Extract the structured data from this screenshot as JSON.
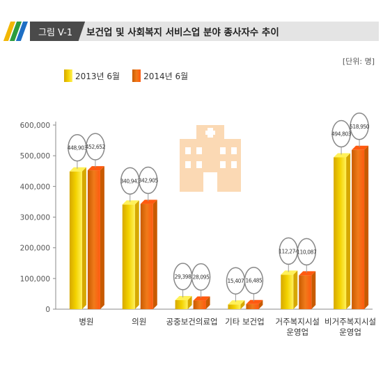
{
  "header": {
    "figure_label": "그림 V-1",
    "title": "보건업 및 사회복지 서비스업 분야 종사자수 추이",
    "stripe_colors": [
      "#f2b705",
      "#2d9c3c",
      "#1e6fc4"
    ]
  },
  "unit_label": "[단위: 명]",
  "colors": {
    "series_2013": "#f3d200",
    "series_2013_top": "#fff15a",
    "series_2013_dark": "#d6a800",
    "series_2014": "#f07b1a",
    "series_2014_top": "#ff5a10",
    "series_2014_dark": "#c85a00",
    "background_icon": "#fbd9b4",
    "axis_text": "#555555"
  },
  "chart_data": {
    "type": "bar",
    "categories": [
      "병원",
      "의원",
      "공중보건의료업",
      "기타 보건업",
      "거주복지시설\n운영업",
      "비거주복지시설\n운영업"
    ],
    "series": [
      {
        "name": "2013년 6월",
        "values": [
          448903,
          340943,
          29398,
          15407,
          112274,
          494803
        ]
      },
      {
        "name": "2014년 6월",
        "values": [
          452652,
          342905,
          28095,
          16485,
          110087,
          518950
        ]
      }
    ],
    "value_labels": [
      [
        "448,903",
        "340,943",
        "29,398",
        "15,407",
        "112,274",
        "494,803"
      ],
      [
        "452,652",
        "342,905",
        "28,095",
        "16,485",
        "110,087",
        "518,950"
      ]
    ],
    "yticks": [
      0,
      100000,
      200000,
      300000,
      400000,
      500000,
      600000
    ],
    "ytick_labels": [
      "0",
      "100,000",
      "200,000",
      "300,000",
      "400,000",
      "500,000",
      "600,000"
    ],
    "ylim": [
      0,
      600000
    ],
    "legend_position": "top-left",
    "grid": false,
    "title": "",
    "xlabel": "",
    "ylabel": ""
  }
}
